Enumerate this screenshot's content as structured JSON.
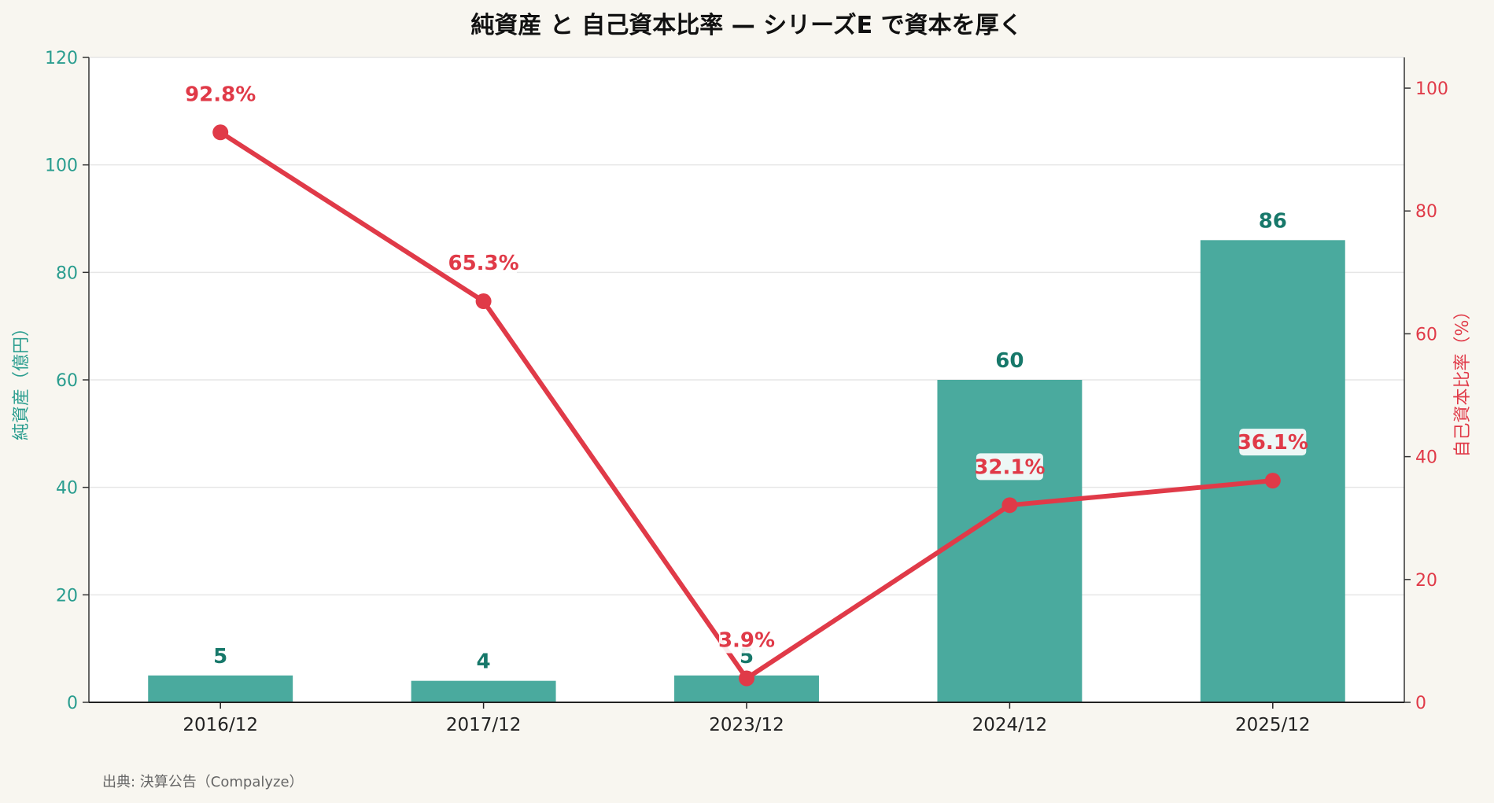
{
  "chart_data": {
    "type": "bar",
    "title": "純資産 と 自己資本比率 — シリーズE で資本を厚く",
    "categories": [
      "2016/12",
      "2017/12",
      "2023/12",
      "2024/12",
      "2025/12"
    ],
    "series": [
      {
        "name": "純資産",
        "type": "bar",
        "axis": "left",
        "color": "#4aaa9e",
        "label_color": "#17786a",
        "values": [
          5,
          4,
          5,
          60,
          86
        ],
        "labels": [
          "5",
          "4",
          "5",
          "60",
          "86"
        ]
      },
      {
        "name": "自己資本比率",
        "type": "line",
        "axis": "right",
        "color": "#e03a48",
        "values": [
          92.8,
          65.3,
          3.9,
          32.1,
          36.1
        ],
        "labels": [
          "92.8%",
          "65.3%",
          "3.9%",
          "32.1%",
          "36.1%"
        ]
      }
    ],
    "y_left": {
      "label": "純資産（億円）",
      "ylim": [
        0,
        120
      ],
      "ticks": [
        0,
        20,
        40,
        60,
        80,
        100,
        120
      ],
      "color": "#2a9d8f"
    },
    "y_right": {
      "label": "自己資本比率（%）",
      "ylim": [
        0,
        105
      ],
      "ticks": [
        0,
        20,
        40,
        60,
        80,
        100
      ],
      "color": "#e03a48"
    },
    "grid": true,
    "source": "出典: 決算公告（Compalyze）"
  }
}
